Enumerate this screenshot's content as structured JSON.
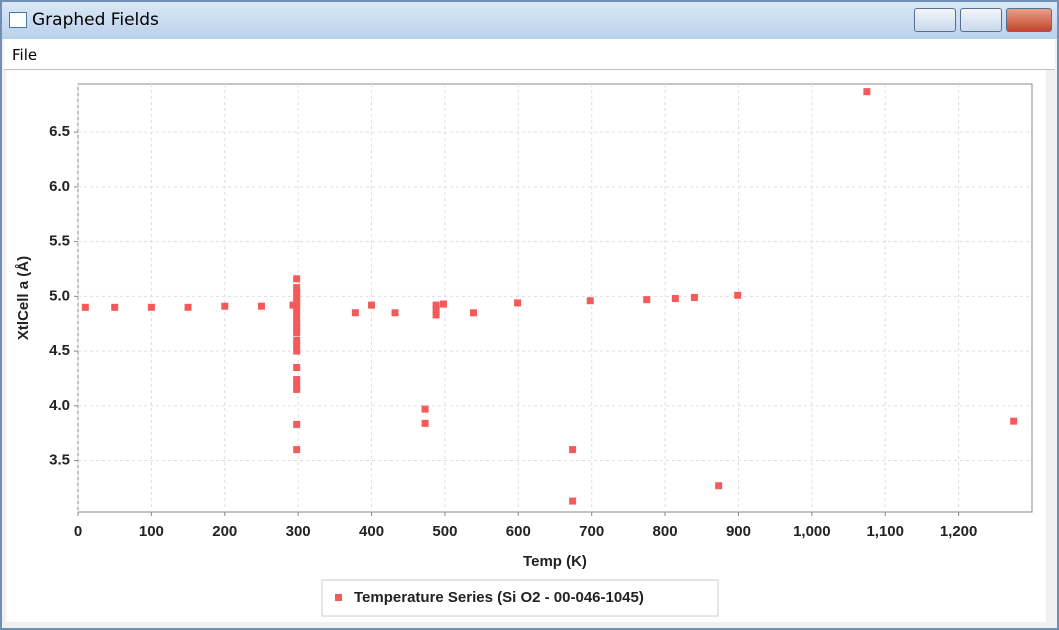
{
  "window": {
    "title": "Graphed Fields",
    "menu": [
      "File"
    ]
  },
  "chart_data": {
    "type": "scatter",
    "x_label": "Temp (K)",
    "y_label": "XtlCell a (Å)",
    "xlim": [
      0,
      1300
    ],
    "ylim": [
      3.03,
      6.94
    ],
    "xticks": [
      0,
      100,
      200,
      300,
      400,
      500,
      600,
      700,
      800,
      900,
      {
        "value": 1000,
        "label": "1,000"
      },
      {
        "value": 1100,
        "label": "1,100"
      },
      {
        "value": 1200,
        "label": "1,200"
      }
    ],
    "yticks": [
      3.5,
      {
        "value": 4,
        "label": "4.0"
      },
      4.5,
      {
        "value": 5,
        "label": "5.0"
      },
      5.5,
      {
        "value": 6,
        "label": "6.0"
      },
      6.5
    ],
    "grid": true,
    "series": [
      {
        "name": "Temperature Series (Si O2 - 00-046-1045)",
        "color": "#f55a5a",
        "x": [
          10,
          50,
          100,
          150,
          200,
          250,
          293,
          298,
          298,
          298,
          298,
          298,
          298,
          298,
          298,
          298,
          298,
          298,
          298,
          298,
          298,
          298,
          298,
          298,
          298,
          298,
          298,
          378,
          400,
          432,
          473,
          473,
          488,
          488,
          488,
          498,
          539,
          599,
          698,
          775,
          814,
          840,
          899,
          1075,
          873,
          674,
          674,
          1275
        ],
        "values": [
          4.9,
          4.9,
          4.9,
          4.9,
          4.91,
          4.91,
          4.92,
          5.16,
          5.08,
          5.03,
          4.99,
          4.94,
          4.9,
          4.85,
          4.8,
          4.76,
          4.71,
          4.67,
          4.6,
          4.55,
          4.5,
          4.35,
          4.24,
          4.19,
          4.15,
          3.83,
          3.6,
          4.85,
          4.92,
          4.85,
          3.97,
          3.84,
          4.92,
          4.88,
          4.83,
          4.93,
          4.85,
          4.94,
          4.96,
          4.97,
          4.98,
          4.99,
          5.01,
          6.87,
          3.27,
          3.6,
          3.13,
          3.86
        ]
      }
    ]
  }
}
